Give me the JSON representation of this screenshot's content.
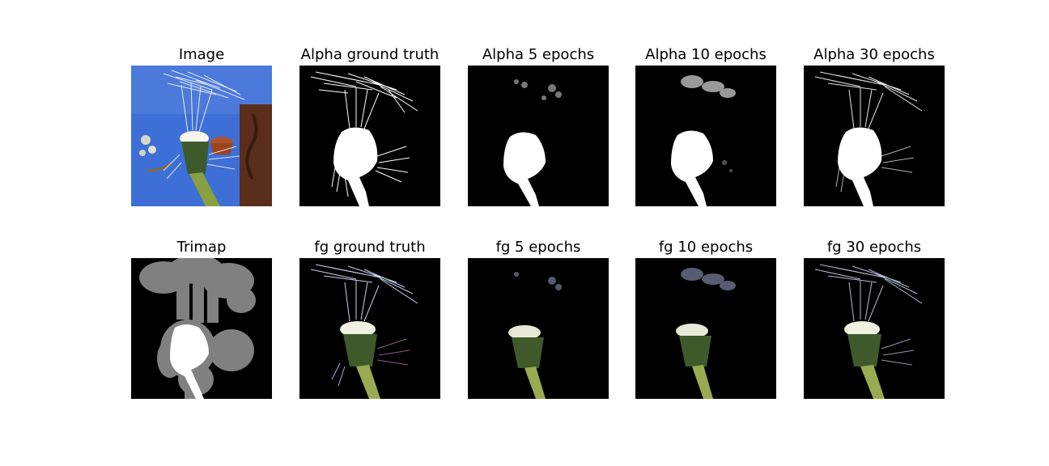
{
  "rows": [
    [
      {
        "title": "Image",
        "kind": "photo"
      },
      {
        "title": "Alpha ground truth",
        "kind": "alpha-gt"
      },
      {
        "title": "Alpha 5 epochs",
        "kind": "alpha-5"
      },
      {
        "title": "Alpha 10 epochs",
        "kind": "alpha-10"
      },
      {
        "title": "Alpha 30 epochs",
        "kind": "alpha-30"
      }
    ],
    [
      {
        "title": "Trimap",
        "kind": "trimap"
      },
      {
        "title": "fg ground truth",
        "kind": "fg-gt"
      },
      {
        "title": "fg 5 epochs",
        "kind": "fg-5"
      },
      {
        "title": "fg 10 epochs",
        "kind": "fg-10"
      },
      {
        "title": "fg 30 epochs",
        "kind": "fg-30"
      }
    ]
  ],
  "colors": {
    "photo_background": "#3d6fd6",
    "trimap_unknown": "#808080",
    "mask_foreground": "#ffffff",
    "panel_background": "#000000"
  }
}
